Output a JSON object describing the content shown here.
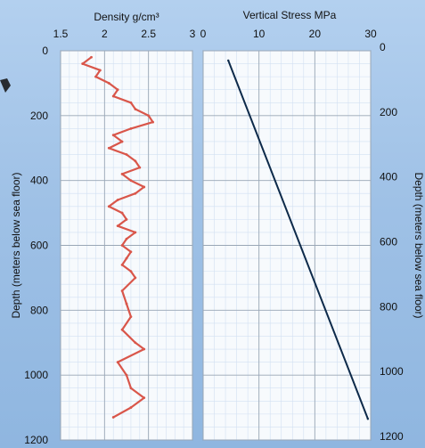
{
  "chart_data": [
    {
      "type": "line",
      "title": "Density g/cm³",
      "x_axis_label": "Density g/cm³",
      "y_axis_label": "Depth (meters below sea floor)",
      "x_ticks": [
        "1.5",
        "2",
        "2.5",
        "3"
      ],
      "y_ticks": [
        "0",
        "200",
        "400",
        "600",
        "800",
        "1000",
        "1200"
      ],
      "xlim": [
        1.5,
        3
      ],
      "ylim": [
        1200,
        0
      ],
      "grid": true,
      "series": [
        {
          "color": "#d9564a",
          "x": [
            1.85,
            1.75,
            1.95,
            1.9,
            2.05,
            2.15,
            2.1,
            2.3,
            2.35,
            2.5,
            2.55,
            2.3,
            2.1,
            2.2,
            2.05,
            2.25,
            2.35,
            2.4,
            2.2,
            2.3,
            2.45,
            2.35,
            2.15,
            2.05,
            2.2,
            2.25,
            2.15,
            2.35,
            2.25,
            2.2,
            2.3,
            2.25,
            2.2,
            2.3,
            2.35,
            2.2,
            2.25,
            2.3,
            2.2,
            2.35,
            2.45,
            2.15,
            2.25,
            2.3,
            2.45,
            2.3,
            2.1
          ],
          "y": [
            20,
            40,
            60,
            80,
            100,
            120,
            140,
            160,
            180,
            200,
            220,
            240,
            260,
            280,
            300,
            320,
            340,
            360,
            380,
            400,
            420,
            440,
            460,
            480,
            500,
            520,
            540,
            560,
            580,
            600,
            620,
            640,
            660,
            680,
            700,
            740,
            780,
            820,
            860,
            900,
            920,
            960,
            1000,
            1040,
            1070,
            1100,
            1130
          ]
        }
      ]
    },
    {
      "type": "line",
      "title": "Vertical Stress MPa",
      "x_axis_label": "Vertical Stress MPa",
      "y_axis_label": "Depth  (meters below sea floor)",
      "x_ticks": [
        "0",
        "10",
        "20",
        "30"
      ],
      "y_ticks": [
        "0",
        "200",
        "400",
        "600",
        "800",
        "1000",
        "1200"
      ],
      "xlim": [
        0,
        30
      ],
      "ylim": [
        1200,
        0
      ],
      "grid": true,
      "series": [
        {
          "color": "#0d2a4a",
          "x": [
            4.5,
            29.5
          ],
          "y": [
            30,
            1135
          ]
        }
      ]
    }
  ]
}
